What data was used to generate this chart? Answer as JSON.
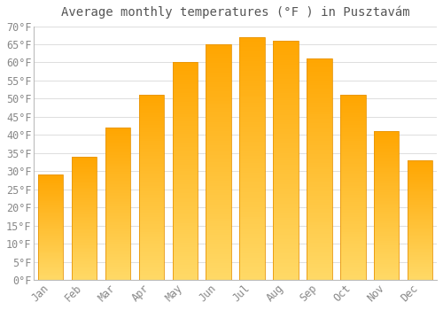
{
  "title": "Average monthly temperatures (°F ) in Pusztavám",
  "months": [
    "Jan",
    "Feb",
    "Mar",
    "Apr",
    "May",
    "Jun",
    "Jul",
    "Aug",
    "Sep",
    "Oct",
    "Nov",
    "Dec"
  ],
  "values": [
    29,
    34,
    42,
    51,
    60,
    65,
    67,
    66,
    61,
    51,
    41,
    33
  ],
  "bar_color_top": "#FFA500",
  "bar_color_bottom": "#FFD966",
  "bar_edge_color": "#E8960A",
  "background_color": "#FFFFFF",
  "grid_color": "#DDDDDD",
  "text_color": "#888888",
  "title_color": "#555555",
  "ylim": [
    0,
    70
  ],
  "ytick_step": 5,
  "title_fontsize": 10,
  "tick_fontsize": 8.5,
  "bar_width": 0.75
}
